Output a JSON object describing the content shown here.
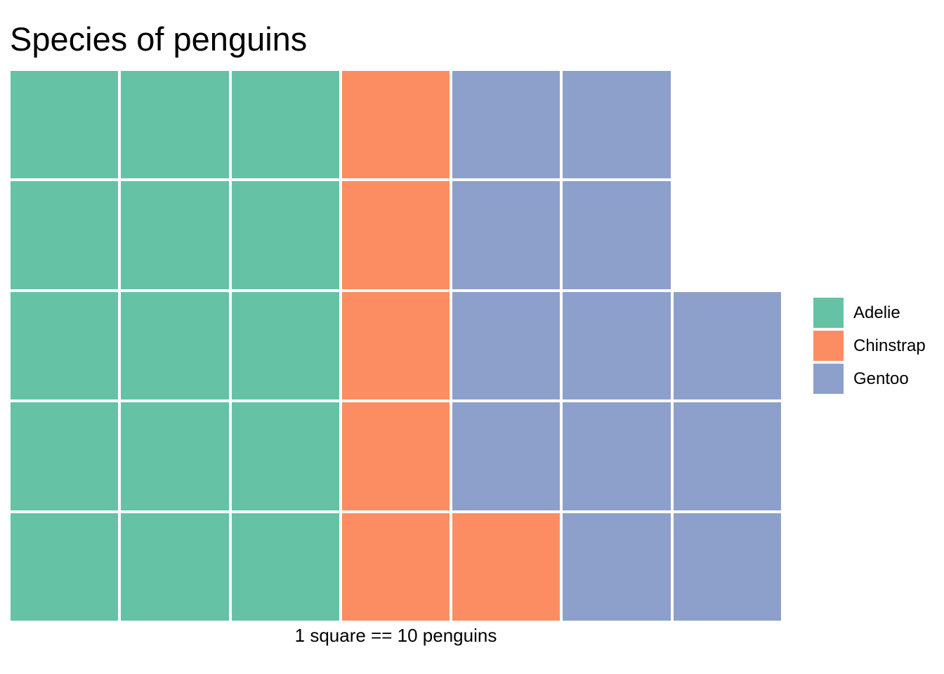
{
  "page": {
    "background_color": "#FFFFFF"
  },
  "chart_data": {
    "type": "waffle",
    "title": "Species of penguins",
    "caption": "1 square == 10 penguins",
    "square_value": 10,
    "unit_label": "penguins",
    "legend": {
      "position": "right",
      "entries": [
        "Adelie",
        "Chinstrap",
        "Gentoo"
      ]
    },
    "series": [
      {
        "key": "adelie",
        "name": "Adelie",
        "squares": 15,
        "approx_penguins": 150,
        "color": "#66C2A5"
      },
      {
        "key": "chinstrap",
        "name": "Chinstrap",
        "squares": 6,
        "approx_penguins": 60,
        "color": "#FC8D62"
      },
      {
        "key": "gentoo",
        "name": "Gentoo",
        "squares": 12,
        "approx_penguins": 120,
        "color": "#8DA0CB"
      }
    ],
    "grid": {
      "rows": 5,
      "cols": 7,
      "fill_order": "column-major-bottom-up",
      "gap_color": "#FFFFFF",
      "cells_by_row": [
        [
          "adelie",
          "adelie",
          "adelie",
          "chinstrap",
          "gentoo",
          "gentoo",
          null
        ],
        [
          "adelie",
          "adelie",
          "adelie",
          "chinstrap",
          "gentoo",
          "gentoo",
          null
        ],
        [
          "adelie",
          "adelie",
          "adelie",
          "chinstrap",
          "gentoo",
          "gentoo",
          "gentoo"
        ],
        [
          "adelie",
          "adelie",
          "adelie",
          "chinstrap",
          "gentoo",
          "gentoo",
          "gentoo"
        ],
        [
          "adelie",
          "adelie",
          "adelie",
          "chinstrap",
          "chinstrap",
          "gentoo",
          "gentoo"
        ]
      ]
    }
  }
}
